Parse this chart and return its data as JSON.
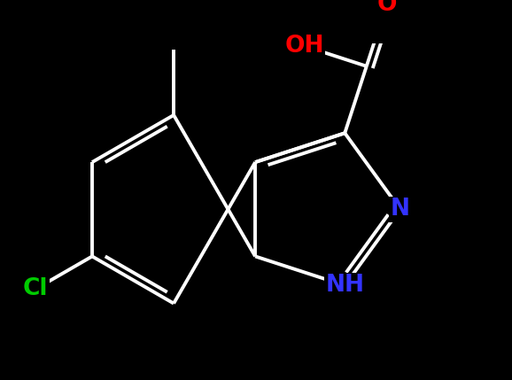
{
  "background_color": "#000000",
  "bond_color": "#ffffff",
  "bond_width": 2.8,
  "figsize": [
    5.78,
    4.29
  ],
  "dpi": 100,
  "colors": {
    "Cl": "#00cc00",
    "OH": "#ff0000",
    "O": "#ff0000",
    "N": "#3333ff",
    "NH": "#3333ff",
    "C": "#ffffff"
  },
  "label_fontsize": 19,
  "label_fontsize_small": 17
}
